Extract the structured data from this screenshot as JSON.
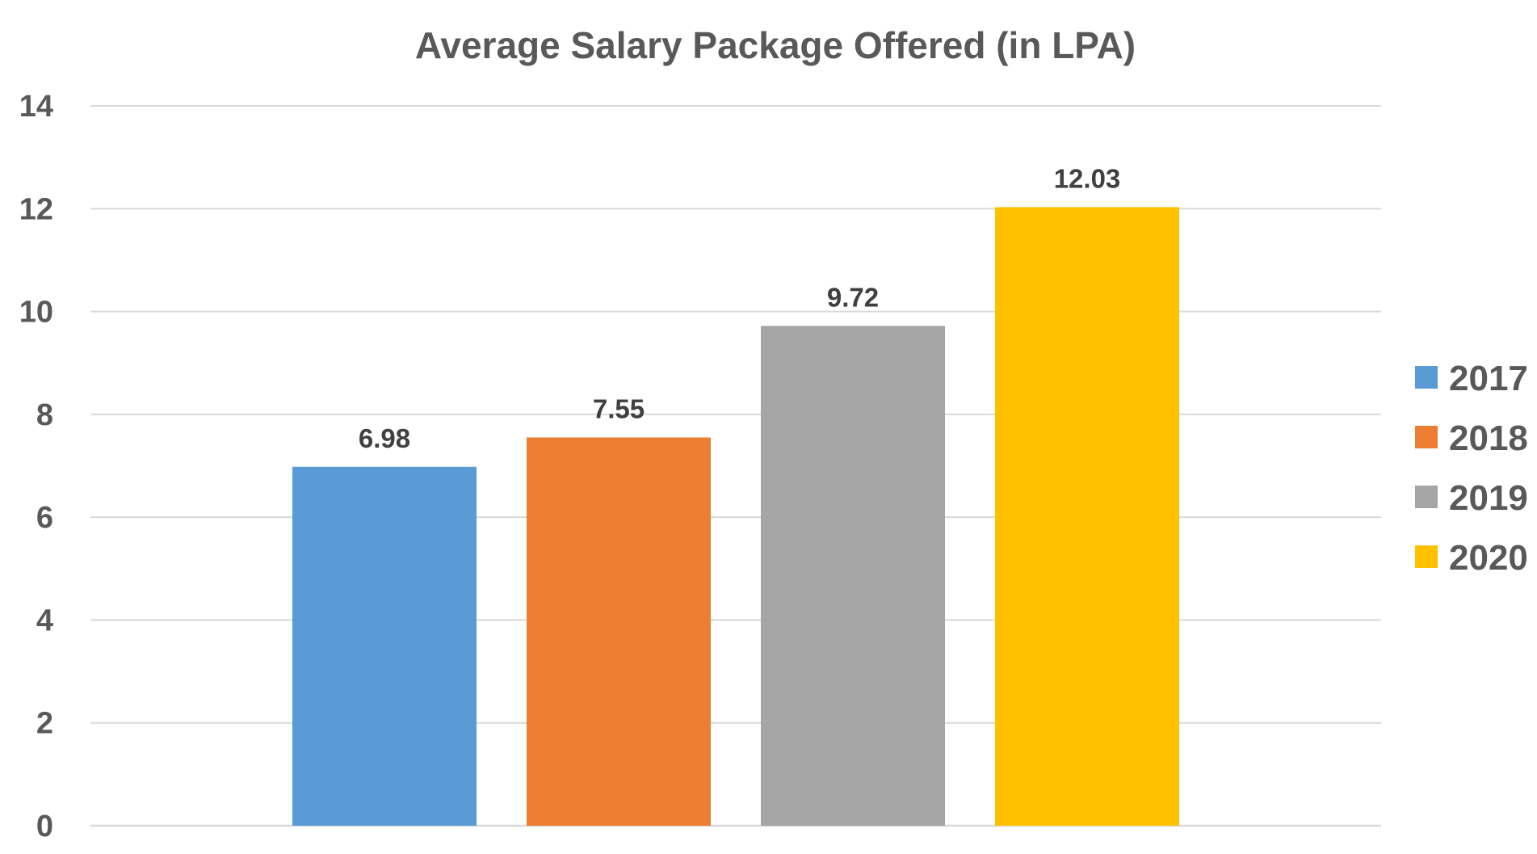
{
  "chart_data": {
    "type": "bar",
    "title": "Average Salary Package Offered (in LPA)",
    "xlabel": "",
    "ylabel": "",
    "ylim": [
      0,
      14
    ],
    "yticks": [
      0,
      2,
      4,
      6,
      8,
      10,
      12,
      14
    ],
    "grid": true,
    "legend": "right",
    "series": [
      {
        "name": "2017",
        "values": [
          6.98
        ],
        "label": "6.98",
        "color": "#5B9BD5"
      },
      {
        "name": "2018",
        "values": [
          7.55
        ],
        "label": "7.55",
        "color": "#ED7D31"
      },
      {
        "name": "2019",
        "values": [
          9.72
        ],
        "label": "9.72",
        "color": "#A5A5A5"
      },
      {
        "name": "2020",
        "values": [
          12.03
        ],
        "label": "12.03",
        "color": "#FFC000"
      }
    ]
  }
}
